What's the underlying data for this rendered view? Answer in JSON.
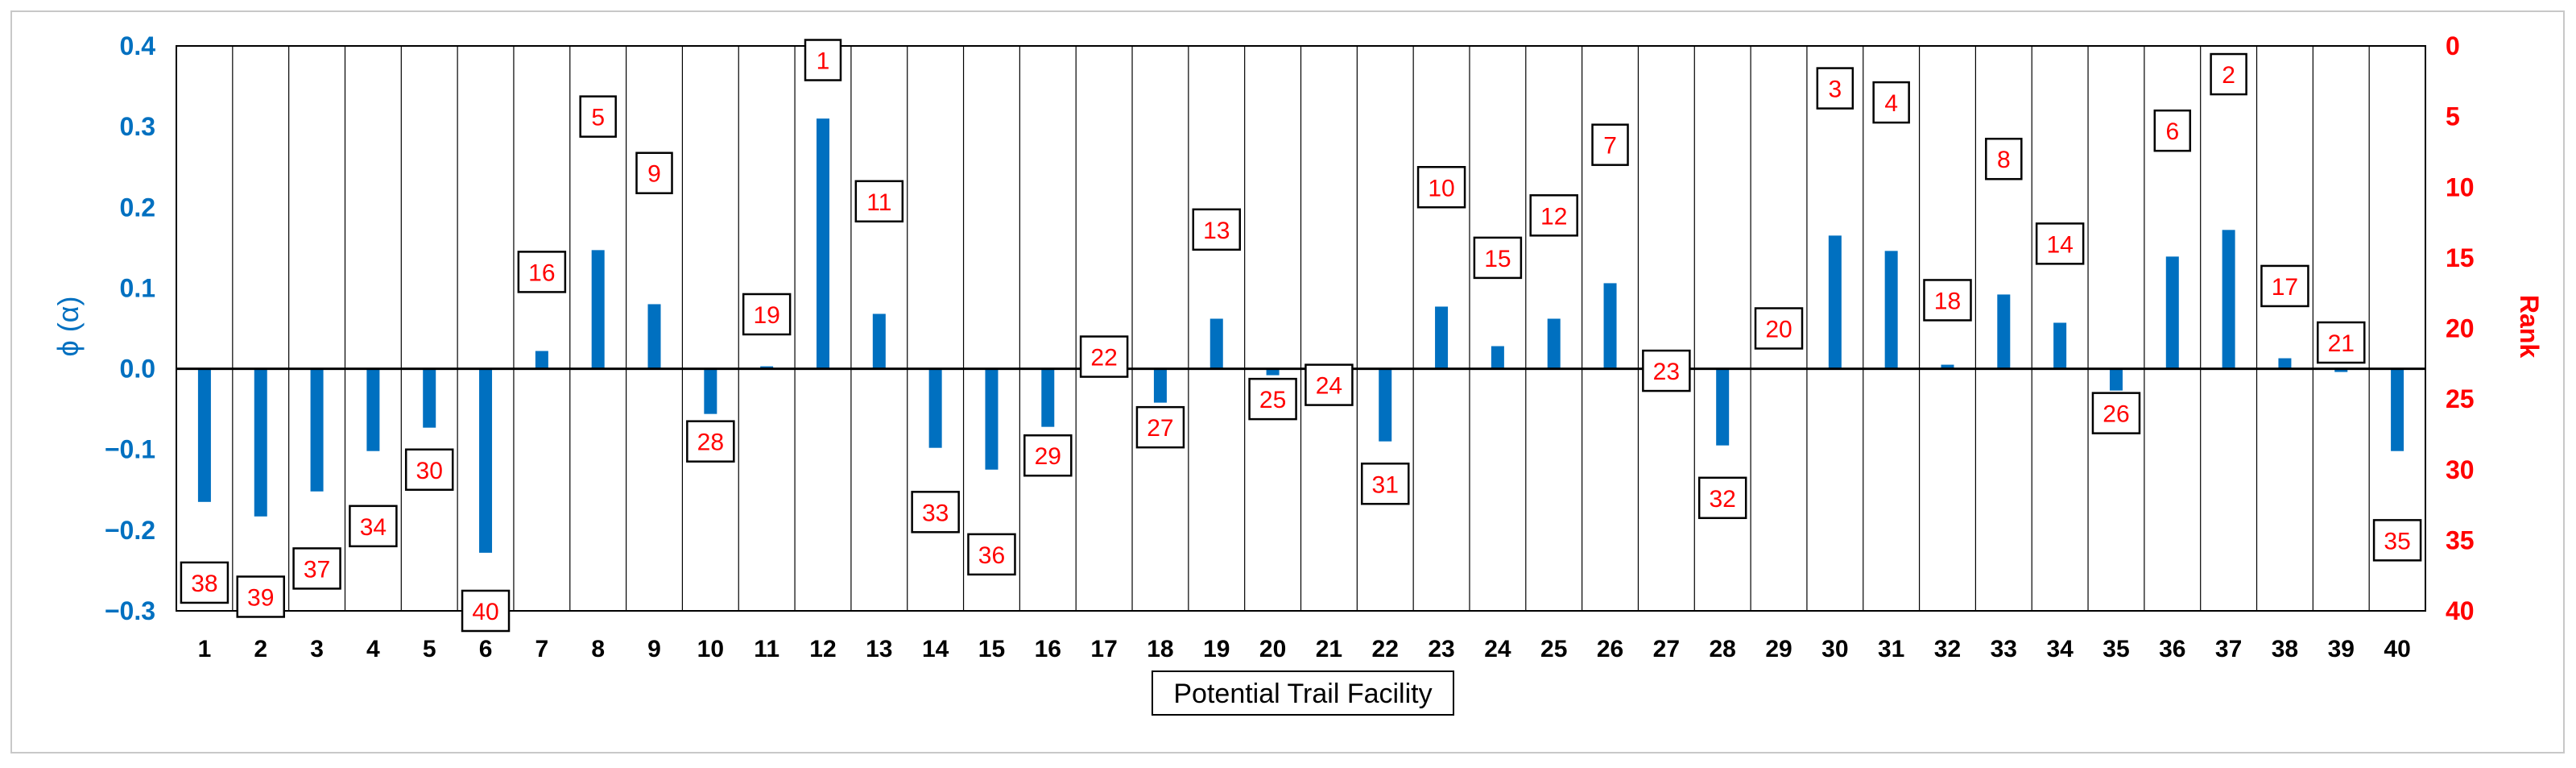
{
  "chart_data": {
    "type": "bar",
    "title": "",
    "xlabel": "Potential Trail Facility",
    "ylabel_left": "ϕ (α)",
    "ylabel_right": "Rank",
    "ylim_left": [
      -0.3,
      0.4
    ],
    "ylim_right": [
      40,
      0
    ],
    "yticks_left": [
      "0.4",
      "0.3",
      "0.2",
      "0.1",
      "0.0",
      "−0.1",
      "−0.2",
      "−0.3"
    ],
    "yticks_right": [
      "0",
      "5",
      "10",
      "15",
      "20",
      "25",
      "30",
      "35",
      "40"
    ],
    "grid": "vertical",
    "categories": [
      "1",
      "2",
      "3",
      "4",
      "5",
      "6",
      "7",
      "8",
      "9",
      "10",
      "11",
      "12",
      "13",
      "14",
      "15",
      "16",
      "17",
      "18",
      "19",
      "20",
      "21",
      "22",
      "23",
      "24",
      "25",
      "26",
      "27",
      "28",
      "29",
      "30",
      "31",
      "32",
      "33",
      "34",
      "35",
      "36",
      "37",
      "38",
      "39",
      "40"
    ],
    "series": [
      {
        "name": "ϕ (α)",
        "axis": "left",
        "color": "#0070C0",
        "values": [
          -0.165,
          -0.183,
          -0.152,
          -0.102,
          -0.073,
          -0.228,
          0.022,
          0.147,
          0.08,
          -0.056,
          0.003,
          0.31,
          0.068,
          -0.098,
          -0.125,
          -0.072,
          0.0,
          -0.042,
          0.062,
          -0.008,
          0.0,
          -0.09,
          0.077,
          0.028,
          0.062,
          0.106,
          0.0,
          -0.095,
          0.0,
          0.165,
          0.146,
          0.005,
          0.092,
          0.057,
          -0.027,
          0.139,
          0.172,
          0.013,
          -0.004,
          -0.102
        ]
      },
      {
        "name": "Rank",
        "axis": "right",
        "color": "#FF0000",
        "labels": [
          "38",
          "39",
          "37",
          "34",
          "30",
          "40",
          "16",
          "5",
          "9",
          "28",
          "19",
          "1",
          "11",
          "33",
          "36",
          "29",
          "22",
          "27",
          "13",
          "25",
          "24",
          "31",
          "10",
          "15",
          "12",
          "7",
          "23",
          "32",
          "20",
          "3",
          "4",
          "18",
          "8",
          "14",
          "26",
          "6",
          "2",
          "17",
          "21",
          "35"
        ],
        "values": [
          38,
          39,
          37,
          34,
          30,
          40,
          16,
          5,
          9,
          28,
          19,
          1,
          11,
          33,
          36,
          29,
          22,
          27,
          13,
          25,
          24,
          31,
          10,
          15,
          12,
          7,
          23,
          32,
          20,
          3,
          4,
          18,
          8,
          14,
          26,
          6,
          2,
          17,
          21,
          35
        ]
      }
    ]
  }
}
